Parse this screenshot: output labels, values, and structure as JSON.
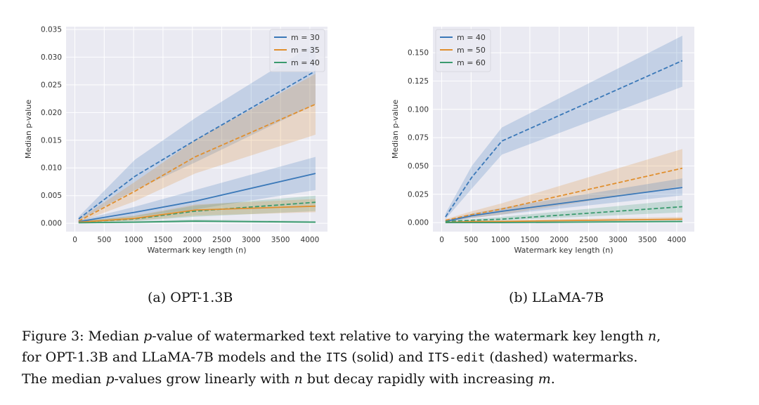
{
  "chart_data": [
    {
      "type": "line",
      "xlabel": "Watermark key length (n)",
      "ylabel": "Median p-value",
      "xlim": [
        -150,
        4300
      ],
      "ylim": [
        -0.0015,
        0.0355
      ],
      "xticks": [
        0,
        500,
        1000,
        1500,
        2000,
        2500,
        3000,
        3500,
        4000
      ],
      "xtick_labels": [
        "0",
        "500",
        "1000",
        "1500",
        "2000",
        "2500",
        "3000",
        "3500",
        "4000"
      ],
      "yticks": [
        0,
        0.005,
        0.01,
        0.015,
        0.02,
        0.025,
        0.03,
        0.035
      ],
      "ytick_labels": [
        "0.000",
        "0.005",
        "0.010",
        "0.015",
        "0.020",
        "0.025",
        "0.030",
        "0.035"
      ],
      "grid": true,
      "legend_position": "top-right",
      "legend": [
        "m = 30",
        "m = 35",
        "m = 40"
      ],
      "x": [
        64,
        1024,
        2048,
        4096
      ],
      "series": [
        {
          "color": "#3a78b8",
          "style": "dashed",
          "values": [
            0.0008,
            0.0085,
            0.015,
            0.0275
          ],
          "lower": [
            0.0005,
            0.006,
            0.011,
            0.0215
          ],
          "upper": [
            0.0012,
            0.0115,
            0.019,
            0.0325
          ]
        },
        {
          "color": "#e08f2e",
          "style": "dashed",
          "values": [
            0.0004,
            0.0058,
            0.012,
            0.0215
          ],
          "lower": [
            0.0002,
            0.004,
            0.009,
            0.016
          ],
          "upper": [
            0.0007,
            0.0075,
            0.015,
            0.027
          ]
        },
        {
          "color": "#3a78b8",
          "style": "solid",
          "values": [
            0.0003,
            0.002,
            0.004,
            0.009
          ],
          "lower": [
            0.0001,
            0.0012,
            0.0025,
            0.006
          ],
          "upper": [
            0.0005,
            0.003,
            0.006,
            0.012
          ]
        },
        {
          "color": "#3a9a6e",
          "style": "dashed",
          "values": [
            0.0002,
            0.0008,
            0.0022,
            0.0038
          ],
          "lower": [
            0.0001,
            0.0004,
            0.0012,
            0.0022
          ],
          "upper": [
            0.0004,
            0.0013,
            0.0032,
            0.005
          ]
        },
        {
          "color": "#e08f2e",
          "style": "solid",
          "values": [
            0.0002,
            0.0009,
            0.0024,
            0.0031
          ],
          "lower": [
            0.0001,
            0.0005,
            0.0014,
            0.002
          ],
          "upper": [
            0.0003,
            0.0014,
            0.0034,
            0.0044
          ]
        },
        {
          "color": "#3a9a6e",
          "style": "solid",
          "values": [
            0.0001,
            0.0002,
            0.0004,
            0.0002
          ],
          "lower": [
            0.0,
            0.0001,
            0.0002,
            0.0001
          ],
          "upper": [
            0.0002,
            0.0004,
            0.0007,
            0.0004
          ]
        }
      ],
      "legend_colors": [
        "#3a78b8",
        "#e08f2e",
        "#3a9a6e"
      ]
    },
    {
      "type": "line",
      "xlabel": "Watermark key length (n)",
      "ylabel": "Median p-value",
      "xlim": [
        -150,
        4300
      ],
      "ylim": [
        -0.008,
        0.173
      ],
      "xticks": [
        0,
        500,
        1000,
        1500,
        2000,
        2500,
        3000,
        3500,
        4000
      ],
      "xtick_labels": [
        "0",
        "500",
        "1000",
        "1500",
        "2000",
        "2500",
        "3000",
        "3500",
        "4000"
      ],
      "yticks": [
        0,
        0.025,
        0.05,
        0.075,
        0.1,
        0.125,
        0.15
      ],
      "ytick_labels": [
        "0.000",
        "0.025",
        "0.050",
        "0.075",
        "0.100",
        "0.125",
        "0.150"
      ],
      "grid": true,
      "legend_position": "top-left",
      "legend": [
        "m = 40",
        "m = 50",
        "m = 60"
      ],
      "x": [
        64,
        512,
        1024,
        4096
      ],
      "series": [
        {
          "color": "#3a78b8",
          "style": "dashed",
          "values": [
            0.005,
            0.04,
            0.072,
            0.143
          ],
          "lower": [
            0.003,
            0.03,
            0.06,
            0.12
          ],
          "upper": [
            0.008,
            0.05,
            0.084,
            0.165
          ]
        },
        {
          "color": "#e08f2e",
          "style": "dashed",
          "values": [
            0.002,
            0.007,
            0.012,
            0.048
          ],
          "lower": [
            0.001,
            0.004,
            0.007,
            0.032
          ],
          "upper": [
            0.003,
            0.01,
            0.017,
            0.065
          ]
        },
        {
          "color": "#3a78b8",
          "style": "solid",
          "values": [
            0.001,
            0.006,
            0.01,
            0.031
          ],
          "lower": [
            0.0,
            0.004,
            0.007,
            0.024
          ],
          "upper": [
            0.002,
            0.008,
            0.013,
            0.039
          ]
        },
        {
          "color": "#3a9a6e",
          "style": "dashed",
          "values": [
            0.001,
            0.002,
            0.003,
            0.014
          ],
          "lower": [
            0.0,
            0.001,
            0.002,
            0.009
          ],
          "upper": [
            0.001,
            0.003,
            0.005,
            0.02
          ]
        },
        {
          "color": "#e08f2e",
          "style": "solid",
          "values": [
            0.0,
            0.001,
            0.001,
            0.003
          ],
          "lower": [
            0.0,
            0.0,
            0.001,
            0.002
          ],
          "upper": [
            0.001,
            0.001,
            0.002,
            0.005
          ]
        },
        {
          "color": "#3a9a6e",
          "style": "solid",
          "values": [
            0.0,
            0.0,
            0.0,
            0.001
          ],
          "lower": [
            0.0,
            0.0,
            0.0,
            0.0
          ],
          "upper": [
            0.0,
            0.001,
            0.001,
            0.002
          ]
        }
      ],
      "legend_colors": [
        "#3a78b8",
        "#e08f2e",
        "#3a9a6e"
      ]
    }
  ],
  "subcaptions": {
    "a": "(a) OPT-1.3B",
    "b": "(b) LLaMA-7B"
  },
  "caption": {
    "p1": "Figure 3: Median ",
    "p": "p",
    "p2": "-value of watermarked text relative to varying the watermark key length ",
    "n": "n",
    "p3": ",",
    "p4": "for OPT-1.3B and LLaMA-7B models and the ",
    "its": "ITS",
    "p5": " (solid) and ",
    "its_edit": "ITS-edit",
    "p6": " (dashed) watermarks.",
    "p7": "The median ",
    "p8": "p",
    "p9": "-values grow linearly with ",
    "n2": "n",
    "p10": " but decay rapidly with increasing ",
    "m": "m",
    "p11": "."
  }
}
